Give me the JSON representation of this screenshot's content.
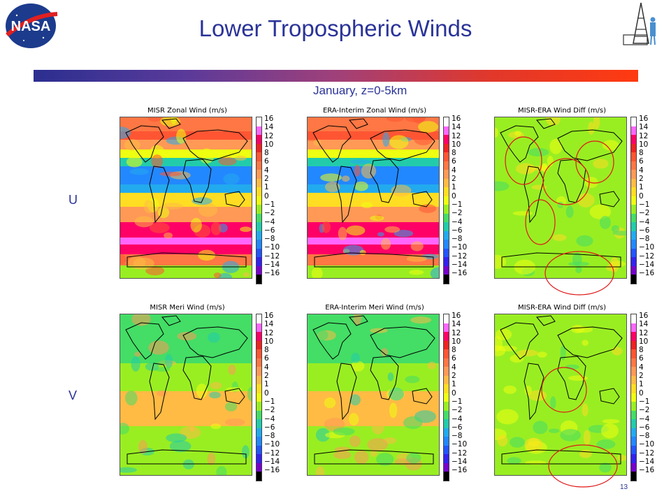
{
  "slide": {
    "title": "Lower Tropospheric Winds",
    "subtitle": "January, z=0-5km",
    "page_number": "13",
    "logo_left": "NASA",
    "logo_right_icon": "rocket-tower-icon",
    "title_bar_colors": [
      "#2b2f90",
      "#ff3a10"
    ]
  },
  "rows": [
    {
      "label": "U",
      "panels": [
        {
          "title": "MISR Zonal Wind (m/s)",
          "field": "zonal-misr"
        },
        {
          "title": "ERA-Interim Zonal Wind (m/s)",
          "field": "zonal-era"
        },
        {
          "title": "MISR-ERA Wind Diff (m/s)",
          "field": "diff-u"
        }
      ]
    },
    {
      "label": "V",
      "panels": [
        {
          "title": "MISR Meri Wind (m/s)",
          "field": "meri-misr"
        },
        {
          "title": "ERA-Interim Meri Wind (m/s)",
          "field": "meri-era"
        },
        {
          "title": "MISR-ERA Wind Diff (m/s)",
          "field": "diff-v"
        }
      ]
    }
  ],
  "colorbar": {
    "ticks": [
      "16",
      "14",
      "12",
      "10",
      "8",
      "6",
      "4",
      "2",
      "1",
      "0",
      "−1",
      "−2",
      "−4",
      "−6",
      "−8",
      "−10",
      "−12",
      "−14",
      "−16"
    ],
    "colors": [
      "#ffffff",
      "#ff66ff",
      "#ff0066",
      "#ee2222",
      "#ff5533",
      "#ff7744",
      "#ff9955",
      "#ffbb44",
      "#ffdd22",
      "#eeff11",
      "#99ee22",
      "#44dd66",
      "#22ccaa",
      "#22aaee",
      "#2288ff",
      "#2255ff",
      "#3322ee",
      "#7700cc",
      "#000000"
    ]
  }
}
